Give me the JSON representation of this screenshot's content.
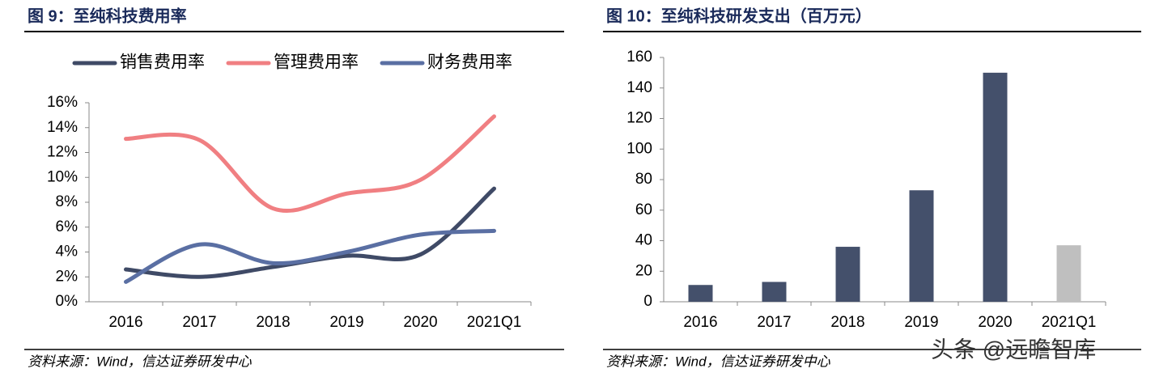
{
  "charts": [
    {
      "type": "line",
      "title": "图 9：至纯科技费用率",
      "categories": [
        "2016",
        "2017",
        "2018",
        "2019",
        "2020",
        "2021Q1"
      ],
      "series": [
        {
          "name": "销售费用率",
          "color": "#3f4a66",
          "values": [
            2.6,
            2.0,
            2.8,
            3.7,
            3.8,
            9.1
          ]
        },
        {
          "name": "管理费用率",
          "color": "#f07f82",
          "values": [
            13.1,
            13.0,
            7.5,
            8.7,
            9.8,
            14.9
          ]
        },
        {
          "name": "财务费用率",
          "color": "#5a6fa3",
          "values": [
            1.6,
            4.6,
            3.1,
            4.0,
            5.4,
            5.7
          ]
        }
      ],
      "ylim": [
        0,
        16
      ],
      "yticks": [
        {
          "value": 0,
          "label": "0%"
        },
        {
          "value": 2,
          "label": "2%"
        },
        {
          "value": 4,
          "label": "4%"
        },
        {
          "value": 6,
          "label": "6%"
        },
        {
          "value": 8,
          "label": "8%"
        },
        {
          "value": 10,
          "label": "10%"
        },
        {
          "value": 12,
          "label": "12%"
        },
        {
          "value": 14,
          "label": "14%"
        },
        {
          "value": 16,
          "label": "16%"
        }
      ],
      "legend": "top",
      "source": "资料来源：Wind，信达证券研发中心"
    },
    {
      "type": "bar",
      "title": "图 10：至纯科技研发支出（百万元）",
      "categories": [
        "2016",
        "2017",
        "2018",
        "2019",
        "2020",
        "2021Q1"
      ],
      "values": [
        11,
        13,
        36,
        73,
        150,
        37
      ],
      "colors": [
        "#44506b",
        "#44506b",
        "#44506b",
        "#44506b",
        "#44506b",
        "#bfbfbf"
      ],
      "ylim": [
        0,
        160
      ],
      "yticks": [
        0,
        20,
        40,
        60,
        80,
        100,
        120,
        140,
        160
      ],
      "source": "资料来源：Wind，信达证券研发中心"
    }
  ],
  "watermark": "头条 @远瞻智库"
}
